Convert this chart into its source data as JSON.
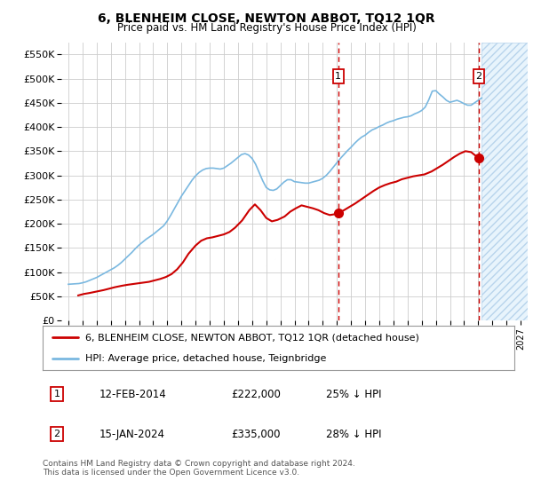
{
  "title": "6, BLENHEIM CLOSE, NEWTON ABBOT, TQ12 1QR",
  "subtitle": "Price paid vs. HM Land Registry's House Price Index (HPI)",
  "ylabel_ticks": [
    0,
    50000,
    100000,
    150000,
    200000,
    250000,
    300000,
    350000,
    400000,
    450000,
    500000,
    550000
  ],
  "xmin": 1994.5,
  "xmax": 2027.5,
  "ymin": 0,
  "ymax": 575000,
  "xticks": [
    1995,
    1996,
    1997,
    1998,
    1999,
    2000,
    2001,
    2002,
    2003,
    2004,
    2005,
    2006,
    2007,
    2008,
    2009,
    2010,
    2011,
    2012,
    2013,
    2014,
    2015,
    2016,
    2017,
    2018,
    2019,
    2020,
    2021,
    2022,
    2023,
    2024,
    2025,
    2026,
    2027
  ],
  "hpi_color": "#7ab8e0",
  "price_color": "#cc0000",
  "vline_color": "#cc0000",
  "marker1_x": 2014.1,
  "marker2_x": 2024.05,
  "marker1_y": 222000,
  "marker2_y": 335000,
  "legend_label1": "6, BLENHEIM CLOSE, NEWTON ABBOT, TQ12 1QR (detached house)",
  "legend_label2": "HPI: Average price, detached house, Teignbridge",
  "annot1_date": "12-FEB-2014",
  "annot1_price": "£222,000",
  "annot1_hpi": "25% ↓ HPI",
  "annot2_date": "15-JAN-2024",
  "annot2_price": "£335,000",
  "annot2_hpi": "28% ↓ HPI",
  "footer": "Contains HM Land Registry data © Crown copyright and database right 2024.\nThis data is licensed under the Open Government Licence v3.0.",
  "bg_color": "#ffffff",
  "grid_color": "#cccccc",
  "hatch_start": 2024.25,
  "hpi_data_x": [
    1995.0,
    1995.25,
    1995.5,
    1995.75,
    1996.0,
    1996.25,
    1996.5,
    1996.75,
    1997.0,
    1997.25,
    1997.5,
    1997.75,
    1998.0,
    1998.25,
    1998.5,
    1998.75,
    1999.0,
    1999.25,
    1999.5,
    1999.75,
    2000.0,
    2000.25,
    2000.5,
    2000.75,
    2001.0,
    2001.25,
    2001.5,
    2001.75,
    2002.0,
    2002.25,
    2002.5,
    2002.75,
    2003.0,
    2003.25,
    2003.5,
    2003.75,
    2004.0,
    2004.25,
    2004.5,
    2004.75,
    2005.0,
    2005.25,
    2005.5,
    2005.75,
    2006.0,
    2006.25,
    2006.5,
    2006.75,
    2007.0,
    2007.25,
    2007.5,
    2007.75,
    2008.0,
    2008.25,
    2008.5,
    2008.75,
    2009.0,
    2009.25,
    2009.5,
    2009.75,
    2010.0,
    2010.25,
    2010.5,
    2010.75,
    2011.0,
    2011.25,
    2011.5,
    2011.75,
    2012.0,
    2012.25,
    2012.5,
    2012.75,
    2013.0,
    2013.25,
    2013.5,
    2013.75,
    2014.0,
    2014.25,
    2014.5,
    2014.75,
    2015.0,
    2015.25,
    2015.5,
    2015.75,
    2016.0,
    2016.25,
    2016.5,
    2016.75,
    2017.0,
    2017.25,
    2017.5,
    2017.75,
    2018.0,
    2018.25,
    2018.5,
    2018.75,
    2019.0,
    2019.25,
    2019.5,
    2019.75,
    2020.0,
    2020.25,
    2020.5,
    2020.75,
    2021.0,
    2021.25,
    2021.5,
    2021.75,
    2022.0,
    2022.25,
    2022.5,
    2022.75,
    2023.0,
    2023.25,
    2023.5,
    2023.75,
    2024.0,
    2024.25
  ],
  "hpi_data_y": [
    75000,
    75500,
    76000,
    76500,
    78000,
    80000,
    83000,
    86000,
    89000,
    93000,
    97000,
    101000,
    105000,
    109000,
    114000,
    120000,
    127000,
    134000,
    141000,
    149000,
    156000,
    162000,
    168000,
    173000,
    178000,
    184000,
    190000,
    196000,
    206000,
    218000,
    231000,
    244000,
    257000,
    268000,
    279000,
    290000,
    299000,
    306000,
    311000,
    314000,
    315000,
    315000,
    314000,
    313000,
    315000,
    320000,
    325000,
    331000,
    337000,
    343000,
    345000,
    342000,
    335000,
    323000,
    306000,
    289000,
    275000,
    270000,
    269000,
    272000,
    279000,
    286000,
    291000,
    291000,
    287000,
    286000,
    285000,
    284000,
    284000,
    286000,
    288000,
    290000,
    294000,
    300000,
    308000,
    317000,
    326000,
    335000,
    343000,
    351000,
    358000,
    366000,
    373000,
    379000,
    383000,
    389000,
    394000,
    397000,
    401000,
    404000,
    408000,
    411000,
    413000,
    416000,
    418000,
    420000,
    421000,
    423000,
    427000,
    430000,
    434000,
    441000,
    456000,
    474000,
    475000,
    468000,
    462000,
    455000,
    451000,
    453000,
    455000,
    452000,
    448000,
    445000,
    445000,
    450000,
    455000,
    460000
  ],
  "price_data_x": [
    1995.7,
    1996.1,
    1996.5,
    1997.0,
    1997.5,
    1997.9,
    1998.3,
    1998.8,
    1999.2,
    1999.7,
    2000.2,
    2000.7,
    2001.1,
    2001.5,
    2001.9,
    2002.3,
    2002.7,
    2003.1,
    2003.5,
    2004.0,
    2004.4,
    2004.8,
    2005.2,
    2005.6,
    2006.0,
    2006.4,
    2006.8,
    2007.3,
    2007.8,
    2008.2,
    2008.6,
    2009.0,
    2009.4,
    2009.8,
    2010.3,
    2010.7,
    2011.1,
    2011.5,
    2011.9,
    2012.3,
    2012.7,
    2013.1,
    2013.5,
    2013.9,
    2014.1,
    2014.5,
    2014.9,
    2015.3,
    2015.8,
    2016.2,
    2016.6,
    2017.0,
    2017.4,
    2017.8,
    2018.2,
    2018.6,
    2019.0,
    2019.4,
    2019.8,
    2020.2,
    2020.7,
    2021.1,
    2021.5,
    2021.9,
    2022.3,
    2022.7,
    2023.1,
    2023.5,
    2024.05
  ],
  "price_data_y": [
    52000,
    55000,
    57000,
    60000,
    63000,
    66000,
    69000,
    72000,
    74000,
    76000,
    78000,
    80000,
    83000,
    86000,
    90000,
    96000,
    106000,
    120000,
    138000,
    155000,
    165000,
    170000,
    172000,
    175000,
    178000,
    183000,
    192000,
    207000,
    228000,
    240000,
    228000,
    212000,
    205000,
    208000,
    215000,
    225000,
    232000,
    238000,
    235000,
    232000,
    228000,
    222000,
    218000,
    220000,
    222000,
    228000,
    235000,
    242000,
    252000,
    260000,
    268000,
    275000,
    280000,
    284000,
    287000,
    292000,
    295000,
    298000,
    300000,
    302000,
    308000,
    315000,
    322000,
    330000,
    338000,
    345000,
    350000,
    348000,
    335000
  ]
}
